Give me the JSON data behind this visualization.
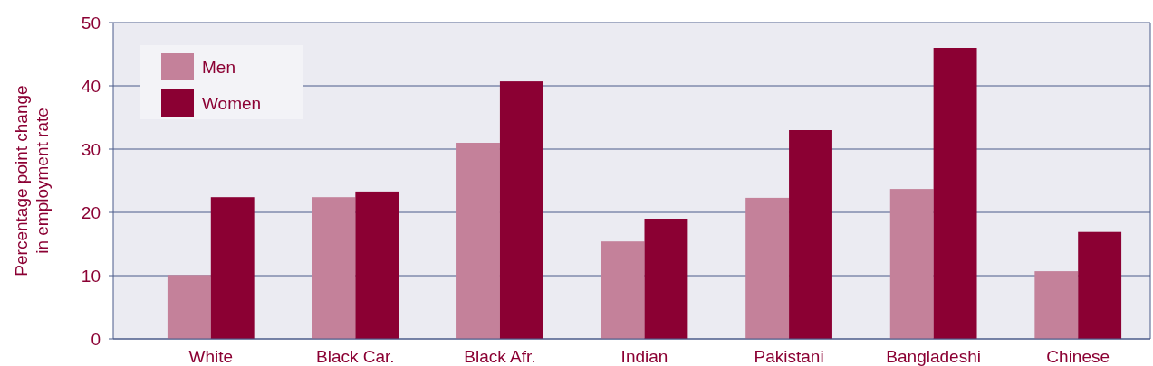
{
  "chart_data": {
    "type": "bar",
    "ylabel": "Percentage point change\nin employment rate",
    "categories": [
      "White",
      "Black Car.",
      "Black Afr.",
      "Indian",
      "Pakistani",
      "Bangladeshi",
      "Chinese"
    ],
    "series": [
      {
        "name": "Men",
        "color": "#c4819a",
        "values": [
          10.1,
          22.4,
          31,
          15.4,
          22.3,
          23.7,
          10.7
        ]
      },
      {
        "name": "Women",
        "color": "#8b0033",
        "values": [
          22.4,
          23.3,
          40.7,
          19,
          33,
          46,
          16.9
        ]
      }
    ],
    "ylim": [
      0,
      50
    ],
    "yticks": [
      0,
      10,
      20,
      30,
      40,
      50
    ],
    "grid": "y",
    "legend": "top left"
  }
}
